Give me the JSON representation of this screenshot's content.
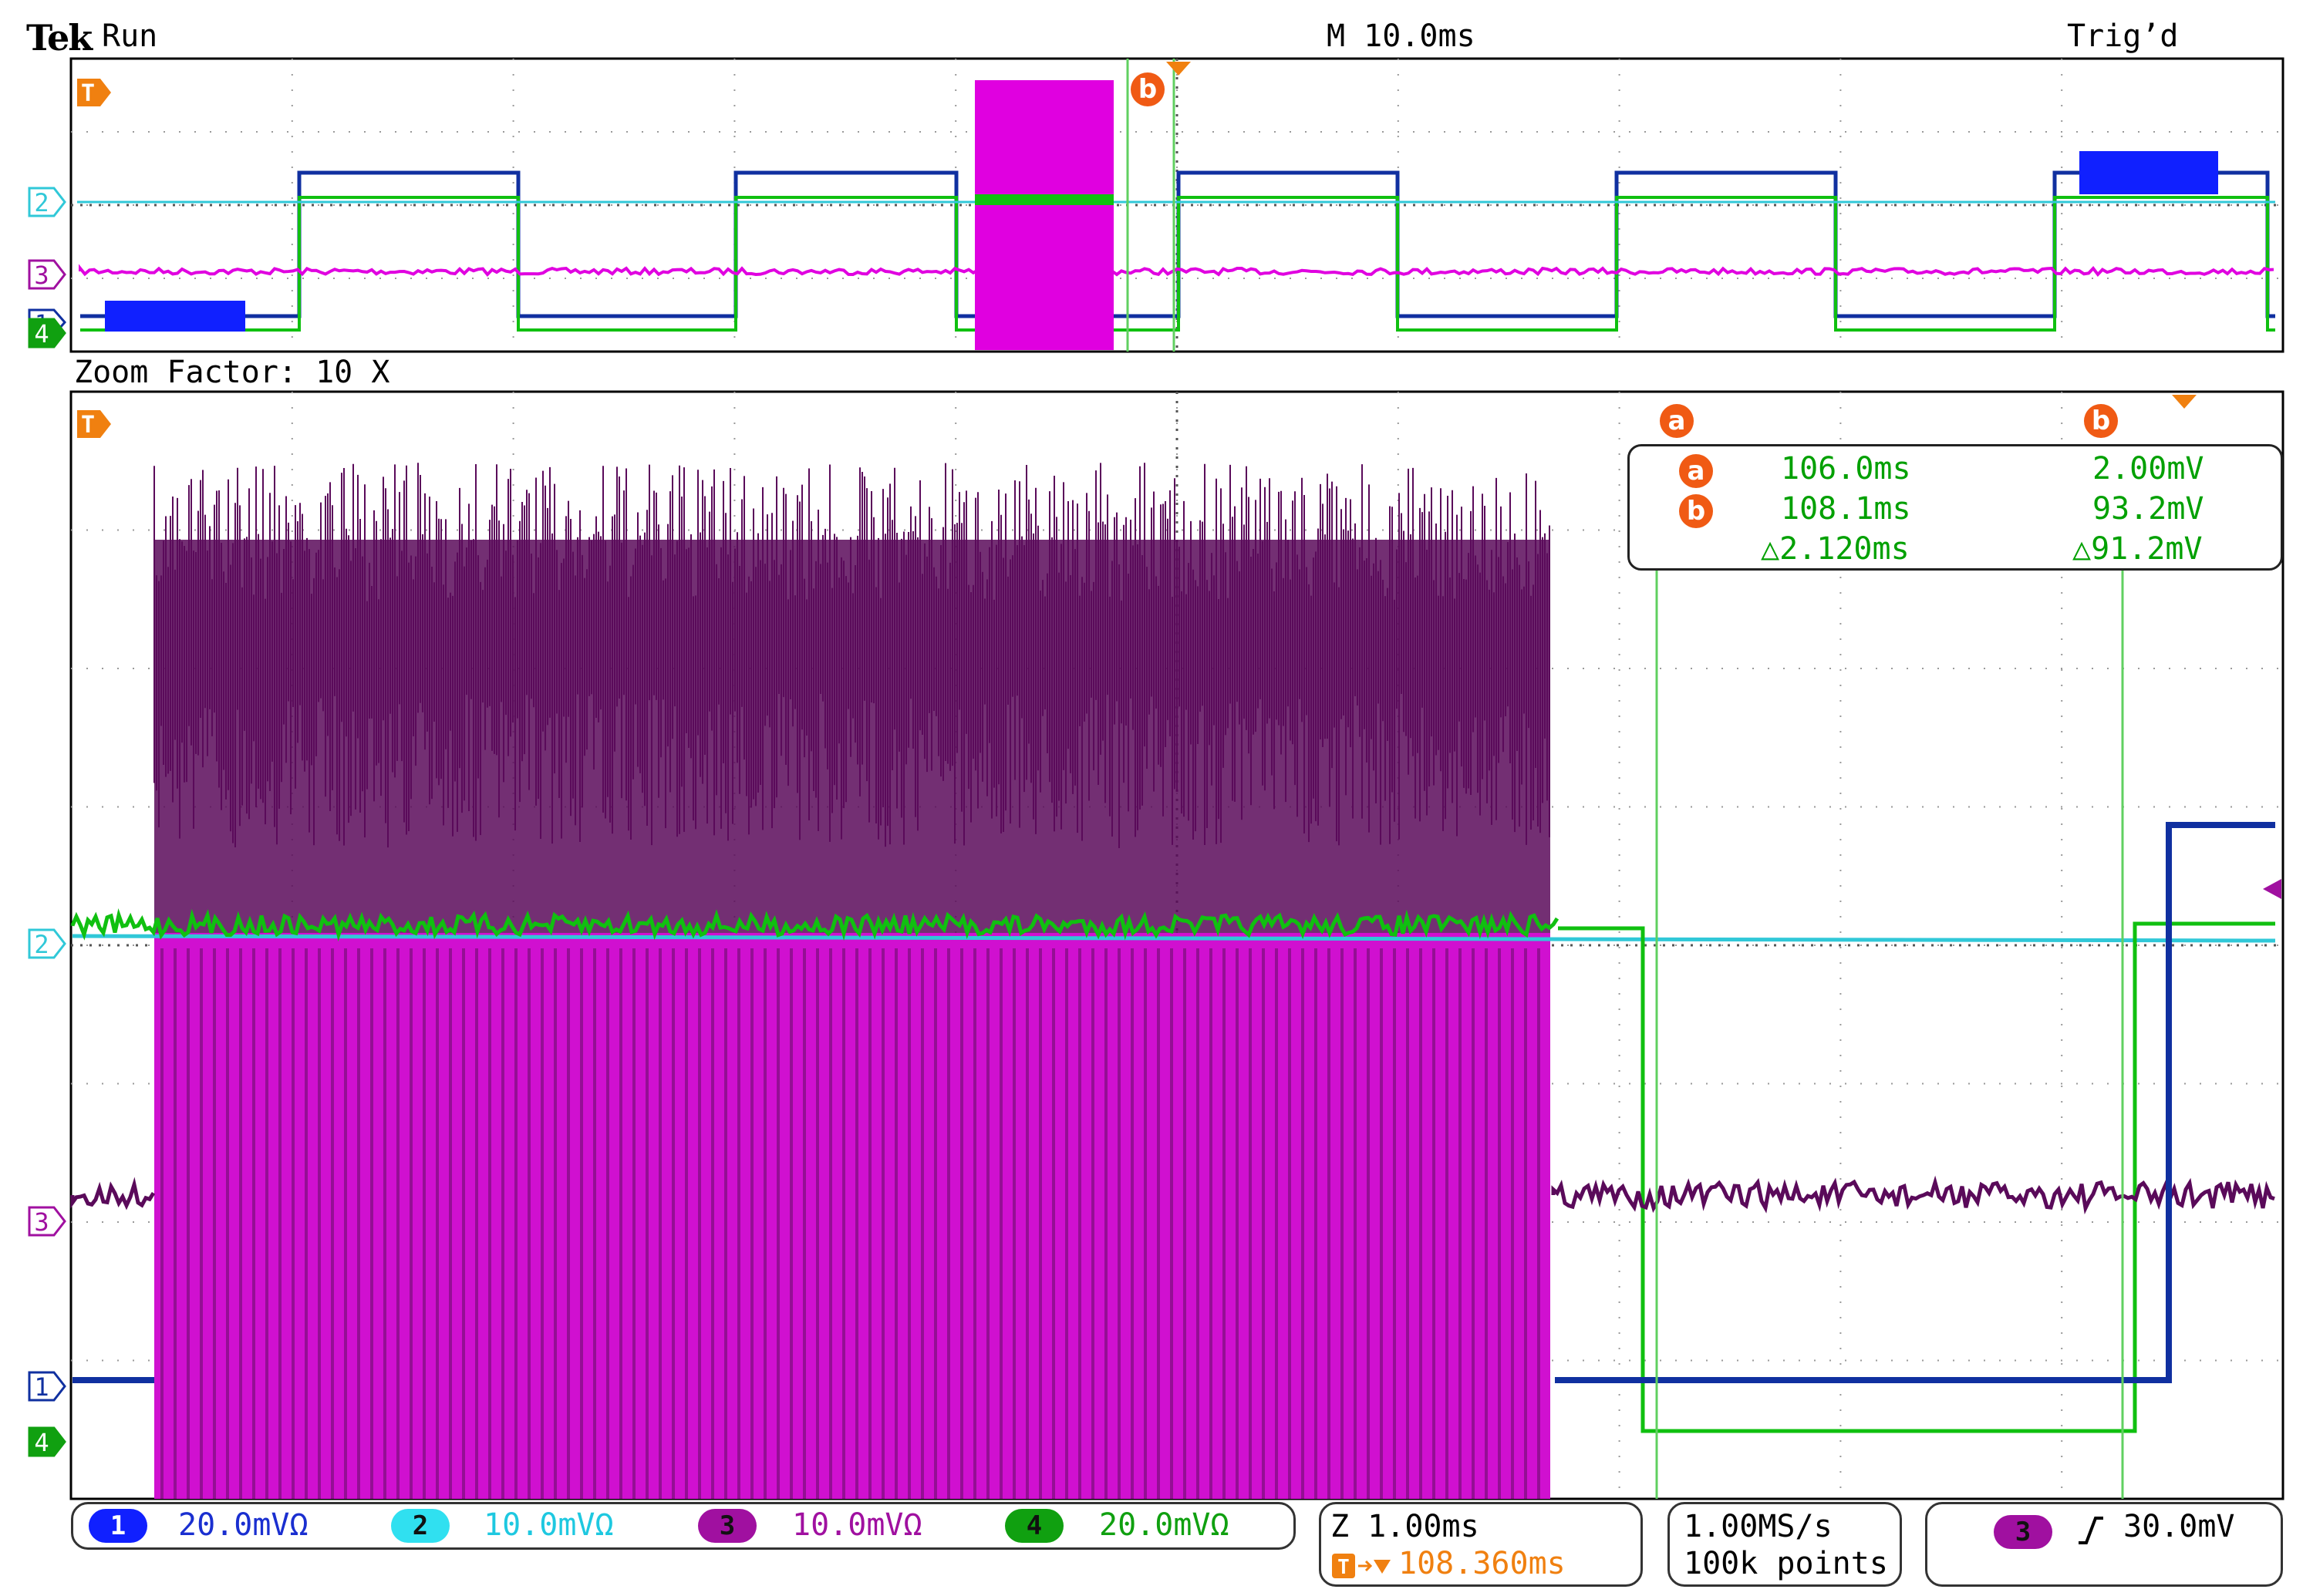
{
  "header": {
    "brand": "Tek",
    "run_state": "Run",
    "timebase": "M 10.0ms",
    "trigger_state": "Trig’d"
  },
  "zoom_label": "Zoom Factor: 10 X",
  "markers": {
    "trigger": "T",
    "cursor_a": "a",
    "cursor_b": "b",
    "ch1": "1",
    "ch2": "2",
    "ch3": "3",
    "ch4": "4"
  },
  "cursor_readout": {
    "a_time": "106.0ms",
    "a_value": "2.00mV",
    "b_time": "108.1ms",
    "b_value": "93.2mV",
    "delta_time": "△2.120ms",
    "delta_value": "△91.2mV"
  },
  "channels": [
    {
      "num": "1",
      "scale": "20.0mVΩ",
      "color": "#1020ff",
      "text_color": "#1a2fd0"
    },
    {
      "num": "2",
      "scale": "10.0mVΩ",
      "color": "#30e0f0",
      "text_color": "#1ec8e0"
    },
    {
      "num": "3",
      "scale": "10.0mVΩ",
      "color": "#a010a0",
      "text_color": "#a010a0"
    },
    {
      "num": "4",
      "scale": "20.0mVΩ",
      "color": "#10a010",
      "text_color": "#10a010"
    }
  ],
  "zoom_status": {
    "zoom_time": "Z 1.00ms",
    "trigger_pos": "108.360ms"
  },
  "acquisition": {
    "sample_rate": "1.00MS/s",
    "record_length": "100k points"
  },
  "trigger_readout": {
    "channel": "3",
    "slope_icon": "rising-edge-icon",
    "level": "30.0mV"
  },
  "colors": {
    "ch1": "#1030a0",
    "ch2": "#30c8d8",
    "ch3_overview": "#e000e0",
    "ch3_zoom_dark": "#5a0a5a",
    "ch3_zoom_fill": "#d010d0",
    "ch4": "#10c010",
    "cursor": "#60d060",
    "marker_orange": "#f08010"
  }
}
